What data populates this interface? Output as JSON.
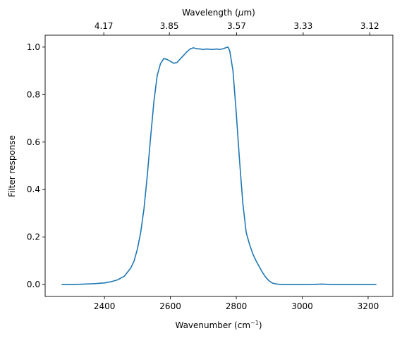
{
  "chart_data": {
    "type": "line",
    "title": "",
    "xlabel": "Wavenumber (cm",
    "xlabel_sup": "−1",
    "xlabel_suffix": ")",
    "ylabel": "Filter response",
    "top_xlabel_prefix": "Wavelength (",
    "top_xlabel_mu": "μ",
    "top_xlabel_suffix": "m)",
    "xlim": [
      2220,
      3275
    ],
    "ylim": [
      -0.05,
      1.05
    ],
    "x_ticks": [
      2400,
      2600,
      2800,
      3000,
      3200
    ],
    "y_ticks": [
      0.0,
      0.2,
      0.4,
      0.6,
      0.8,
      1.0
    ],
    "y_tick_labels": [
      "0.0",
      "0.2",
      "0.4",
      "0.6",
      "0.8",
      "1.0"
    ],
    "top_ticks": [
      {
        "wavenumber": 2398,
        "label": "4.17"
      },
      {
        "wavenumber": 2597,
        "label": "3.85"
      },
      {
        "wavenumber": 2801,
        "label": "3.57"
      },
      {
        "wavenumber": 3003,
        "label": "3.33"
      },
      {
        "wavenumber": 3205,
        "label": "3.12"
      }
    ],
    "grid": false,
    "color": "#1f77b4",
    "series": [
      {
        "x": [
          2270,
          2300,
          2340,
          2370,
          2400,
          2420,
          2440,
          2460,
          2480,
          2490,
          2500,
          2510,
          2520,
          2530,
          2540,
          2550,
          2560,
          2570,
          2580,
          2590,
          2600,
          2610,
          2620,
          2630,
          2640,
          2650,
          2660,
          2670,
          2680,
          2690,
          2700,
          2710,
          2720,
          2730,
          2740,
          2750,
          2760,
          2770,
          2775,
          2780,
          2790,
          2800,
          2810,
          2820,
          2830,
          2840,
          2850,
          2860,
          2870,
          2880,
          2890,
          2900,
          2910,
          2920,
          2930,
          2950,
          2980,
          3020,
          3060,
          3100,
          3150,
          3200,
          3225
        ],
        "y": [
          0.0,
          0.0,
          0.002,
          0.004,
          0.007,
          0.012,
          0.02,
          0.035,
          0.07,
          0.1,
          0.15,
          0.22,
          0.32,
          0.46,
          0.62,
          0.77,
          0.88,
          0.93,
          0.952,
          0.948,
          0.94,
          0.932,
          0.935,
          0.95,
          0.965,
          0.98,
          0.992,
          0.997,
          0.993,
          0.992,
          0.99,
          0.992,
          0.991,
          0.99,
          0.992,
          0.99,
          0.993,
          0.998,
          1.0,
          0.985,
          0.9,
          0.72,
          0.52,
          0.34,
          0.22,
          0.17,
          0.13,
          0.1,
          0.075,
          0.05,
          0.03,
          0.015,
          0.006,
          0.003,
          0.001,
          0.0,
          0.0,
          0.0,
          0.002,
          0.0,
          0.0,
          0.0,
          0.0
        ]
      }
    ]
  }
}
